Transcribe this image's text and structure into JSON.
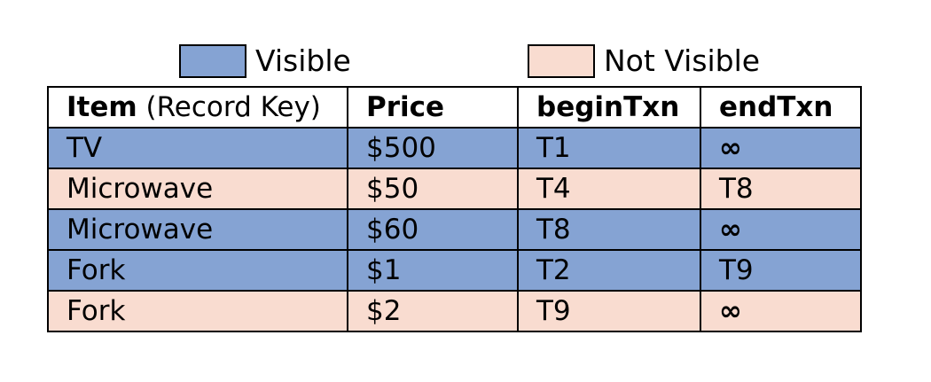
{
  "colors": {
    "visible": "#85a3d3",
    "not_visible": "#f9dcd0",
    "border": "#000000",
    "header_bg": "#ffffff"
  },
  "legend": {
    "visible_label": "Visible",
    "not_visible_label": "Not Visible"
  },
  "table": {
    "headers": {
      "item_bold": "Item",
      "item_rest": " (Record Key)",
      "price": "Price",
      "begin_txn": "beginTxn",
      "end_txn": "endTxn"
    },
    "rows": [
      {
        "item": "TV",
        "price": "$500",
        "begin_txn": "T1",
        "end_txn": "∞",
        "status": "visible"
      },
      {
        "item": "Microwave",
        "price": "$50",
        "begin_txn": "T4",
        "end_txn": "T8",
        "status": "not_visible"
      },
      {
        "item": "Microwave",
        "price": "$60",
        "begin_txn": "T8",
        "end_txn": "∞",
        "status": "visible"
      },
      {
        "item": "Fork",
        "price": "$1",
        "begin_txn": "T2",
        "end_txn": "T9",
        "status": "visible"
      },
      {
        "item": "Fork",
        "price": "$2",
        "begin_txn": "T9",
        "end_txn": "∞",
        "status": "not_visible"
      }
    ]
  }
}
